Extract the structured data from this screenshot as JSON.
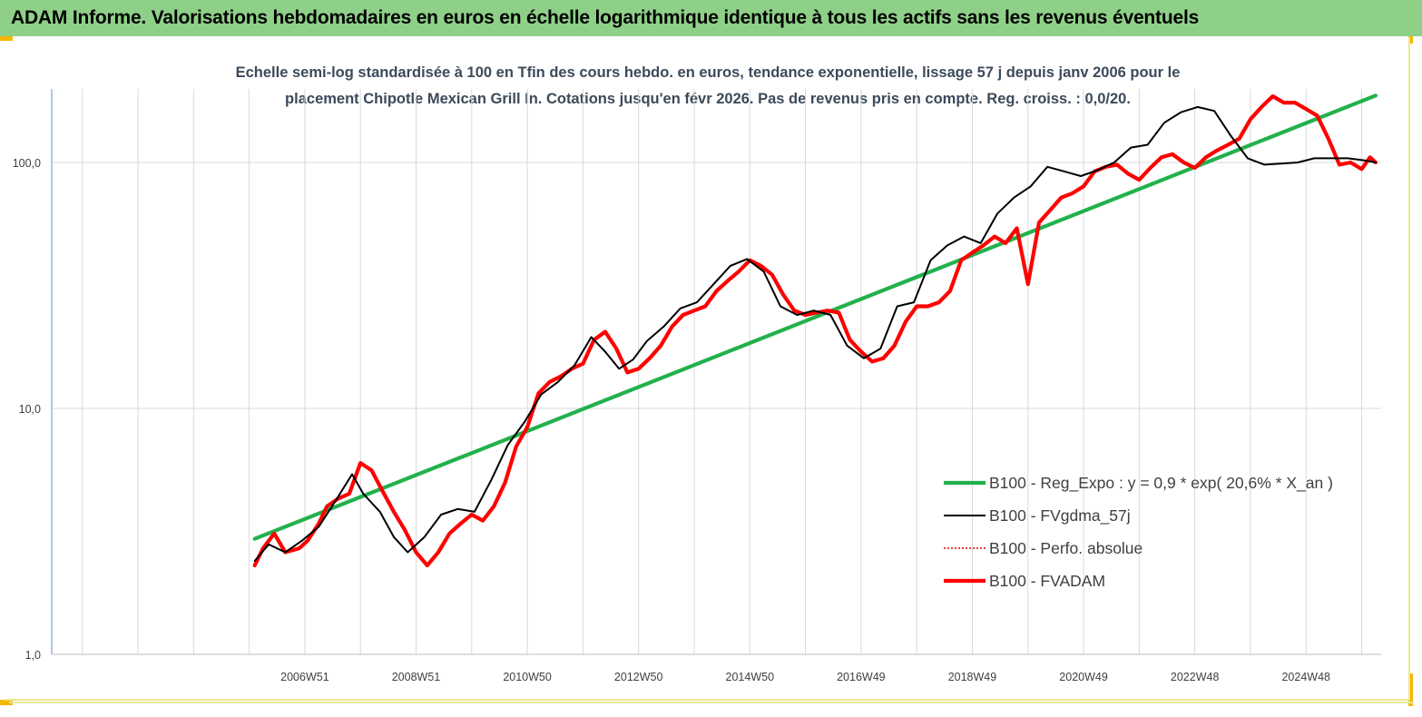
{
  "header": {
    "title": "ADAM Informe. Valorisations hebdomadaires en euros en échelle logarithmique identique à tous les actifs sans les revenus éventuels"
  },
  "colors": {
    "header_bg": "#8fd089",
    "corner_accent": "#f5b800",
    "regression": "#22b14c",
    "smoothed": "#000000",
    "perfo": "#e00000",
    "fvadam": "#ff0000"
  },
  "chart_data": {
    "type": "line",
    "title_lines": [
      "Echelle semi-log standardisée à 100 en Tfin des cours hebdo. en euros, tendance exponentielle, lissage 57 j depuis janv 2006 pour le",
      "placement Chipotle Mexican Grill In. Cotations jusqu'en févr 2026. Pas de revenus pris en compte. Reg. croiss. : 0,0/20."
    ],
    "xlabel": "",
    "ylabel": "",
    "y_scale": "log",
    "ylim": [
      1,
      200
    ],
    "y_ticks": [
      {
        "value": 1,
        "label": "1,0"
      },
      {
        "value": 10,
        "label": "10,0"
      },
      {
        "value": 100,
        "label": "100,0"
      }
    ],
    "x_range": [
      2002.4,
      2026.3
    ],
    "x_ticks": [
      {
        "x": 2006.95,
        "label": "2006W51"
      },
      {
        "x": 2008.95,
        "label": "2008W51"
      },
      {
        "x": 2010.95,
        "label": "2010W50"
      },
      {
        "x": 2012.95,
        "label": "2012W50"
      },
      {
        "x": 2014.95,
        "label": "2014W50"
      },
      {
        "x": 2016.95,
        "label": "2016W49"
      },
      {
        "x": 2018.95,
        "label": "2018W49"
      },
      {
        "x": 2020.95,
        "label": "2020W49"
      },
      {
        "x": 2022.95,
        "label": "2022W48"
      },
      {
        "x": 2024.95,
        "label": "2024W48"
      }
    ],
    "grid": {
      "vertical": true,
      "horizontal": true
    },
    "legend_position": "bottom-right",
    "series": [
      {
        "name": "B100 - Reg_Expo : y = 0,9 * exp( 20,6% *  X_an )",
        "style": "solid-thick",
        "color": "#22b14c",
        "x": [
          2006.05,
          2026.2
        ],
        "y": [
          2.95,
          187
        ]
      },
      {
        "name": "B100 - FVgdma_57j",
        "style": "solid",
        "color": "#000000",
        "x": [
          2006.05,
          2006.3,
          2006.6,
          2006.9,
          2007.2,
          2007.5,
          2007.8,
          2008.0,
          2008.3,
          2008.55,
          2008.8,
          2009.1,
          2009.4,
          2009.7,
          2010.0,
          2010.3,
          2010.6,
          2010.9,
          2011.2,
          2011.5,
          2011.8,
          2012.1,
          2012.35,
          2012.6,
          2012.85,
          2013.1,
          2013.4,
          2013.7,
          2014.0,
          2014.3,
          2014.6,
          2014.9,
          2015.2,
          2015.5,
          2015.8,
          2016.1,
          2016.4,
          2016.7,
          2017.0,
          2017.3,
          2017.6,
          2017.9,
          2018.2,
          2018.5,
          2018.8,
          2019.1,
          2019.4,
          2019.7,
          2020.0,
          2020.3,
          2020.6,
          2020.9,
          2021.2,
          2021.5,
          2021.8,
          2022.1,
          2022.4,
          2022.7,
          2023.0,
          2023.3,
          2023.6,
          2023.9,
          2024.2,
          2024.5,
          2024.8,
          2025.1,
          2025.4,
          2025.7,
          2026.0,
          2026.2
        ],
        "y": [
          2.4,
          2.8,
          2.6,
          2.9,
          3.3,
          4.2,
          5.4,
          4.5,
          3.8,
          3.0,
          2.6,
          3.0,
          3.7,
          3.9,
          3.8,
          5.1,
          7.1,
          8.8,
          11.4,
          12.8,
          15.0,
          19.5,
          17.0,
          14.5,
          15.8,
          18.8,
          21.5,
          25.5,
          27.0,
          32.0,
          38.0,
          40.5,
          36.0,
          26.0,
          24.0,
          25.0,
          24.0,
          18.0,
          16.0,
          17.5,
          26.0,
          27.0,
          40.0,
          46.0,
          50.0,
          47.0,
          62.0,
          72.0,
          80.0,
          96.0,
          92.0,
          88.0,
          93.0,
          100.0,
          115.0,
          118.0,
          145.0,
          160.0,
          168.0,
          162.0,
          128.0,
          104.0,
          98.0,
          99.0,
          100.0,
          104.0,
          104.0,
          104.0,
          102.0,
          100.0
        ]
      },
      {
        "name": "B100 - Perfo. absolue",
        "style": "dotted",
        "color": "#e00000",
        "x": [],
        "y": []
      },
      {
        "name": "B100 - FVADAM",
        "style": "solid-thick",
        "color": "#ff0000",
        "x": [
          2006.05,
          2006.2,
          2006.4,
          2006.6,
          2006.85,
          2007.0,
          2007.2,
          2007.35,
          2007.55,
          2007.75,
          2007.95,
          2008.15,
          2008.35,
          2008.55,
          2008.75,
          2008.95,
          2009.15,
          2009.35,
          2009.55,
          2009.75,
          2009.95,
          2010.15,
          2010.35,
          2010.55,
          2010.75,
          2010.95,
          2011.15,
          2011.35,
          2011.55,
          2011.75,
          2011.95,
          2012.15,
          2012.35,
          2012.55,
          2012.75,
          2012.95,
          2013.15,
          2013.35,
          2013.55,
          2013.75,
          2013.95,
          2014.15,
          2014.35,
          2014.55,
          2014.75,
          2014.95,
          2015.15,
          2015.35,
          2015.55,
          2015.75,
          2015.95,
          2016.15,
          2016.35,
          2016.55,
          2016.75,
          2016.95,
          2017.15,
          2017.35,
          2017.55,
          2017.75,
          2017.95,
          2018.15,
          2018.35,
          2018.55,
          2018.75,
          2018.95,
          2019.15,
          2019.35,
          2019.55,
          2019.75,
          2019.95,
          2020.15,
          2020.35,
          2020.55,
          2020.75,
          2020.95,
          2021.15,
          2021.35,
          2021.55,
          2021.75,
          2021.95,
          2022.15,
          2022.35,
          2022.55,
          2022.75,
          2022.95,
          2023.15,
          2023.35,
          2023.55,
          2023.75,
          2023.95,
          2024.15,
          2024.35,
          2024.55,
          2024.75,
          2024.95,
          2025.15,
          2025.35,
          2025.55,
          2025.75,
          2025.95,
          2026.1,
          2026.2
        ],
        "y": [
          2.3,
          2.7,
          3.1,
          2.6,
          2.7,
          2.9,
          3.4,
          4.0,
          4.3,
          4.5,
          6.0,
          5.6,
          4.6,
          3.8,
          3.2,
          2.6,
          2.3,
          2.6,
          3.1,
          3.4,
          3.7,
          3.5,
          4.0,
          5.0,
          7.0,
          8.4,
          11.5,
          12.8,
          13.5,
          14.5,
          15.2,
          19.0,
          20.5,
          17.5,
          14.0,
          14.5,
          16.0,
          18.0,
          21.5,
          24.0,
          25.0,
          26.0,
          30.0,
          33.0,
          36.0,
          40.0,
          38.0,
          35.0,
          29.0,
          25.0,
          24.0,
          24.5,
          25.0,
          24.5,
          19.0,
          17.0,
          15.5,
          16.0,
          18.0,
          22.5,
          26.0,
          26.0,
          27.0,
          30.0,
          40.0,
          43.0,
          46.0,
          50.0,
          47.0,
          54.0,
          32.0,
          57.0,
          64.0,
          72.0,
          75.0,
          80.0,
          92.0,
          96.0,
          98.0,
          90.0,
          85.0,
          95.0,
          105.0,
          108.0,
          100.0,
          95.0,
          105.0,
          112.0,
          118.0,
          125.0,
          150.0,
          168.0,
          186.0,
          175.0,
          175.0,
          165.0,
          155.0,
          125.0,
          98.0,
          100.0,
          94.0,
          105.0,
          100.0
        ]
      }
    ]
  }
}
